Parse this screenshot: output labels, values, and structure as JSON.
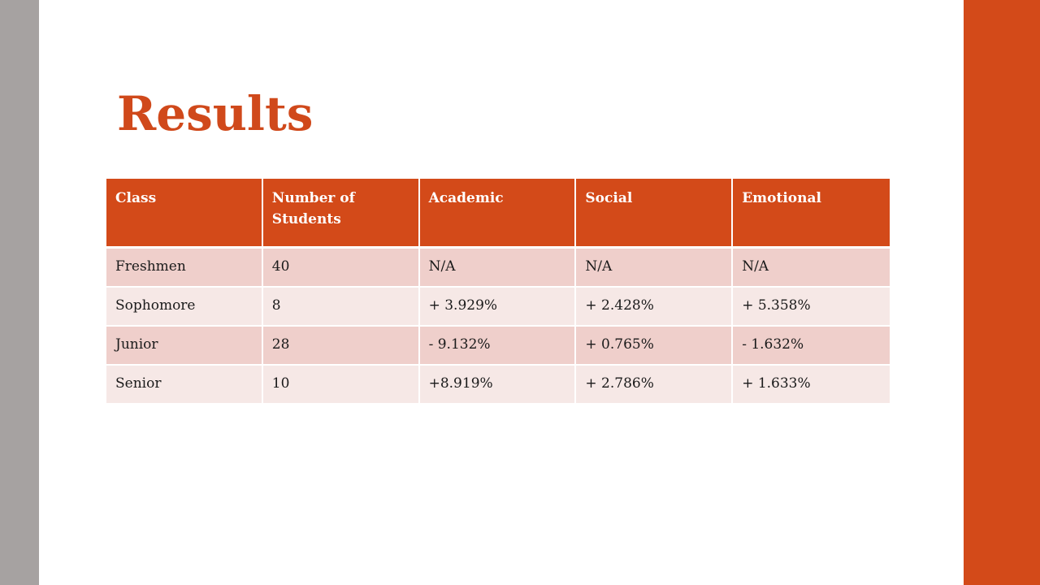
{
  "slide": {
    "title": "Results",
    "colors": {
      "accent": "#d34a19",
      "left_bar": "#a6a2a1",
      "row_odd": "#efcfcb",
      "row_even": "#f6e8e6"
    }
  },
  "table": {
    "headers": [
      "Class",
      "Number of Students",
      "Academic",
      "Social",
      "Emotional"
    ],
    "rows": [
      [
        "Freshmen",
        "40",
        "N/A",
        "N/A",
        "N/A"
      ],
      [
        "Sophomore",
        "8",
        "+ 3.929%",
        "+ 2.428%",
        "+ 5.358%"
      ],
      [
        "Junior",
        "28",
        "- 9.132%",
        "+ 0.765%",
        "- 1.632%"
      ],
      [
        "Senior",
        "10",
        "+8.919%",
        "+ 2.786%",
        "+ 1.633%"
      ]
    ]
  }
}
